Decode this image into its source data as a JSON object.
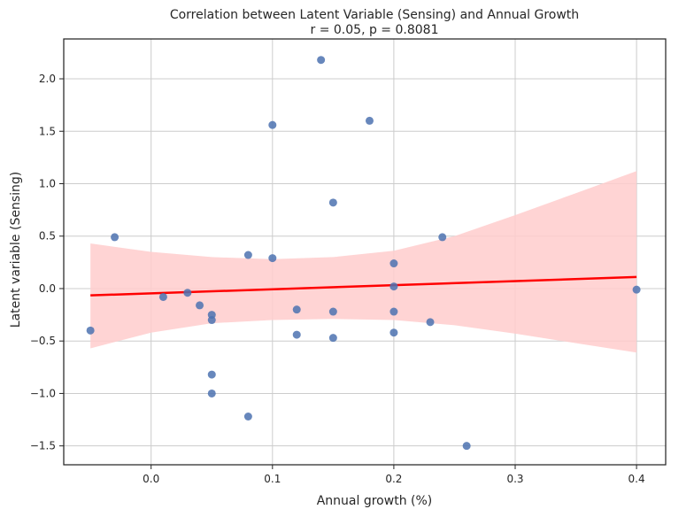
{
  "chart_data": {
    "type": "scatter",
    "title": "Correlation between Latent Variable (Sensing) and Annual Growth",
    "subtitle": "r = 0.05, p = 0.8081",
    "xlabel": "Annual growth (%)",
    "ylabel": "Latent variable (Sensing)",
    "xlim": [
      -0.072,
      0.424
    ],
    "ylim": [
      -1.68,
      2.38
    ],
    "x_ticks": [
      0.0,
      0.1,
      0.2,
      0.3,
      0.4
    ],
    "x_tick_labels": [
      "0.0",
      "0.1",
      "0.2",
      "0.3",
      "0.4"
    ],
    "y_ticks": [
      -1.5,
      -1.0,
      -0.5,
      0.0,
      0.5,
      1.0,
      1.5,
      2.0
    ],
    "y_tick_labels": [
      "−1.5",
      "−1.0",
      "−0.5",
      "0.0",
      "0.5",
      "1.0",
      "1.5",
      "2.0"
    ],
    "grid": true,
    "colors": {
      "points": "#4c72b0",
      "regression_line": "#ff0000",
      "confidence_band": "#ffcccc"
    },
    "points": [
      {
        "x": -0.05,
        "y": -0.4
      },
      {
        "x": -0.03,
        "y": 0.49
      },
      {
        "x": 0.01,
        "y": -0.08
      },
      {
        "x": 0.03,
        "y": -0.04
      },
      {
        "x": 0.04,
        "y": -0.16
      },
      {
        "x": 0.05,
        "y": -0.25
      },
      {
        "x": 0.05,
        "y": -0.3
      },
      {
        "x": 0.05,
        "y": -0.82
      },
      {
        "x": 0.05,
        "y": -1.0
      },
      {
        "x": 0.08,
        "y": 0.32
      },
      {
        "x": 0.08,
        "y": -1.22
      },
      {
        "x": 0.1,
        "y": 0.29
      },
      {
        "x": 0.1,
        "y": 1.56
      },
      {
        "x": 0.12,
        "y": -0.2
      },
      {
        "x": 0.12,
        "y": -0.44
      },
      {
        "x": 0.14,
        "y": 2.18
      },
      {
        "x": 0.15,
        "y": 0.82
      },
      {
        "x": 0.15,
        "y": -0.22
      },
      {
        "x": 0.15,
        "y": -0.47
      },
      {
        "x": 0.18,
        "y": 1.6
      },
      {
        "x": 0.2,
        "y": 0.24
      },
      {
        "x": 0.2,
        "y": 0.02
      },
      {
        "x": 0.2,
        "y": -0.22
      },
      {
        "x": 0.2,
        "y": -0.42
      },
      {
        "x": 0.23,
        "y": -0.32
      },
      {
        "x": 0.24,
        "y": 0.49
      },
      {
        "x": 0.26,
        "y": -1.5
      },
      {
        "x": 0.4,
        "y": -0.01
      }
    ],
    "regression": {
      "x": [
        -0.05,
        0.4
      ],
      "y": [
        -0.065,
        0.11
      ]
    },
    "confidence_band": {
      "x": [
        -0.05,
        0.0,
        0.05,
        0.1,
        0.15,
        0.2,
        0.25,
        0.3,
        0.35,
        0.4
      ],
      "upper": [
        0.43,
        0.35,
        0.3,
        0.28,
        0.3,
        0.36,
        0.5,
        0.7,
        0.91,
        1.12
      ],
      "lower": [
        -0.57,
        -0.42,
        -0.33,
        -0.3,
        -0.29,
        -0.3,
        -0.35,
        -0.43,
        -0.52,
        -0.61
      ]
    }
  }
}
